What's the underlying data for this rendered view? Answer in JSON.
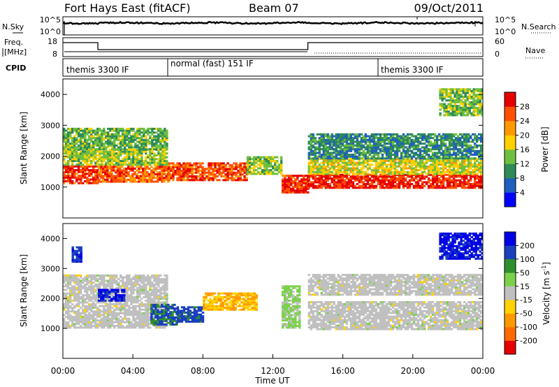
{
  "header": {
    "station": "Fort Hays East (fitACF)",
    "beam": "Beam 07",
    "date": "09/Oct/2011"
  },
  "summary": {
    "nsky_label": "N.Sky",
    "nsearch_label": "N.Search",
    "noise_ticks": [
      "10^5",
      "10^0"
    ],
    "freq_label_top": "Freq.",
    "freq_label_bottom": "[MHz]",
    "freq_ticks": [
      "18",
      "8"
    ],
    "nave_label": "Nave",
    "nave_ticks": [
      "60",
      "0"
    ],
    "cpid_label": "CPID",
    "cpid_segments": [
      {
        "start_hour": 0,
        "end_hour": 6,
        "label": "themis 3300 IF"
      },
      {
        "start_hour": 6,
        "end_hour": 18,
        "label": "normal (fast) 151 IF"
      },
      {
        "start_hour": 18,
        "end_hour": 24,
        "label": "themis 3300 IF"
      }
    ]
  },
  "axes": {
    "x_title": "Time UT",
    "x_ticks": [
      "00:00",
      "04:00",
      "08:00",
      "12:00",
      "16:00",
      "20:00",
      "00:00"
    ],
    "y_ticks": [
      "1000",
      "2000",
      "3000",
      "4000"
    ],
    "y_title": "Slant Range [km]"
  },
  "colorbars": {
    "power": {
      "title": "Power [dB]",
      "ticks": [
        "4",
        "8",
        "12",
        "16",
        "20",
        "24",
        "28"
      ],
      "colors": [
        "#0000ff",
        "#1f5fbf",
        "#2e8b57",
        "#6fbf3f",
        "#ffd000",
        "#ff9900",
        "#ff5000",
        "#e60000"
      ]
    },
    "velocity": {
      "title": "Velocity [m s",
      "title_sup": "-1",
      "title_end": "]",
      "ticks": [
        "-200",
        "-100",
        "-50",
        "-15",
        "15",
        "50",
        "100",
        "200"
      ],
      "colors": [
        "#e60000",
        "#ff6a00",
        "#ff9900",
        "#ffd200",
        "#c0c0c0",
        "#7bd24a",
        "#2f8f2f",
        "#1a3fbf",
        "#0000e6"
      ]
    }
  },
  "chart_data": [
    {
      "type": "line",
      "title": "Fort Hays East (fitACF) Beam 07 09/Oct/2011",
      "xlabel": "Time UT",
      "ylabel": "Freq. [MHz]",
      "x_unit": "hour UT",
      "ylim": [
        8,
        18
      ],
      "series": [
        {
          "values_x": [
            0,
            2,
            2,
            14,
            14,
            24
          ],
          "values_y": [
            16,
            16,
            12,
            12,
            16,
            16
          ]
        }
      ]
    },
    {
      "type": "heatmap",
      "title": "Power",
      "xlabel": "Time UT",
      "ylabel": "Slant Range [km]",
      "xlim": [
        0,
        24
      ],
      "ylim": [
        0,
        4500
      ],
      "z_label": "Power [dB]",
      "zlim": [
        0,
        30
      ],
      "bands": [
        {
          "start_hour": 0.0,
          "end_hour": 2.0,
          "range_min_km": 1100,
          "range_max_km": 1700,
          "power_db": 26
        },
        {
          "start_hour": 0.0,
          "end_hour": 6.0,
          "range_min_km": 1700,
          "range_max_km": 2200,
          "power_db": 14
        },
        {
          "start_hour": 0.0,
          "end_hour": 6.0,
          "range_min_km": 2200,
          "range_max_km": 2900,
          "power_db": 12
        },
        {
          "start_hour": 2.0,
          "end_hour": 6.0,
          "range_min_km": 1150,
          "range_max_km": 1650,
          "power_db": 24
        },
        {
          "start_hour": 6.0,
          "end_hour": 10.5,
          "range_min_km": 1200,
          "range_max_km": 1800,
          "power_db": 25
        },
        {
          "start_hour": 10.5,
          "end_hour": 12.5,
          "range_min_km": 1400,
          "range_max_km": 2000,
          "power_db": 14
        },
        {
          "start_hour": 12.5,
          "end_hour": 14.0,
          "range_min_km": 800,
          "range_max_km": 1400,
          "power_db": 26
        },
        {
          "start_hour": 14.0,
          "end_hour": 24.0,
          "range_min_km": 950,
          "range_max_km": 1400,
          "power_db": 27
        },
        {
          "start_hour": 14.0,
          "end_hour": 24.0,
          "range_min_km": 1400,
          "range_max_km": 1900,
          "power_db": 16
        },
        {
          "start_hour": 14.0,
          "end_hour": 24.0,
          "range_min_km": 1900,
          "range_max_km": 2700,
          "power_db": 9
        },
        {
          "start_hour": 21.5,
          "end_hour": 24.0,
          "range_min_km": 3300,
          "range_max_km": 4200,
          "power_db": 13
        }
      ]
    },
    {
      "type": "heatmap",
      "title": "Velocity",
      "xlabel": "Time UT",
      "ylabel": "Slant Range [km]",
      "xlim": [
        0,
        24
      ],
      "ylim": [
        0,
        4500
      ],
      "z_label": "Velocity [m s^-1]",
      "zlim": [
        -250,
        250
      ],
      "bands": [
        {
          "start_hour": 0.0,
          "end_hour": 6.0,
          "range_min_km": 1000,
          "range_max_km": 2800,
          "velocity_ms": 0
        },
        {
          "start_hour": 0.5,
          "end_hour": 1.0,
          "range_min_km": 3200,
          "range_max_km": 3700,
          "velocity_ms": 180
        },
        {
          "start_hour": 2.0,
          "end_hour": 3.5,
          "range_min_km": 1900,
          "range_max_km": 2300,
          "velocity_ms": 200
        },
        {
          "start_hour": 5.0,
          "end_hour": 6.5,
          "range_min_km": 1100,
          "range_max_km": 1800,
          "velocity_ms": 150
        },
        {
          "start_hour": 6.5,
          "end_hour": 8.0,
          "range_min_km": 1200,
          "range_max_km": 1700,
          "velocity_ms": 160
        },
        {
          "start_hour": 8.0,
          "end_hour": 11.0,
          "range_min_km": 1600,
          "range_max_km": 2200,
          "velocity_ms": -80
        },
        {
          "start_hour": 12.5,
          "end_hour": 13.5,
          "range_min_km": 1000,
          "range_max_km": 2400,
          "velocity_ms": 40
        },
        {
          "start_hour": 14.0,
          "end_hour": 24.0,
          "range_min_km": 950,
          "range_max_km": 1900,
          "velocity_ms": 0
        },
        {
          "start_hour": 14.0,
          "end_hour": 24.0,
          "range_min_km": 2100,
          "range_max_km": 2800,
          "velocity_ms": 0
        },
        {
          "start_hour": 21.5,
          "end_hour": 24.0,
          "range_min_km": 3300,
          "range_max_km": 4200,
          "velocity_ms": 210
        }
      ]
    }
  ]
}
